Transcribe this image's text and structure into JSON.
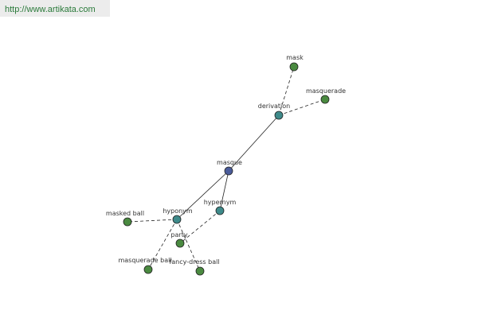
{
  "header": {
    "url": "http://www.artikata.com"
  },
  "nodes": [
    {
      "label": "masque"
    },
    {
      "label": "derivation"
    },
    {
      "label": "mask"
    },
    {
      "label": "masquerade"
    },
    {
      "label": "hyponym"
    },
    {
      "label": "hypernym"
    },
    {
      "label": "masked ball"
    },
    {
      "label": "party"
    },
    {
      "label": "masquerade ball"
    },
    {
      "label": "fancy-dress ball"
    }
  ]
}
